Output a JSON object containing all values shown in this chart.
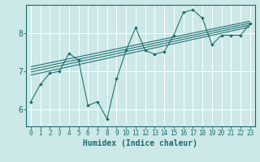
{
  "title": "",
  "xlabel": "Humidex (Indice chaleur)",
  "ylabel": "",
  "bg_color": "#cce8e8",
  "grid_color": "#ffffff",
  "line_color": "#1a6b6b",
  "xlim": [
    -0.5,
    23.5
  ],
  "ylim": [
    5.55,
    8.75
  ],
  "yticks": [
    6,
    7,
    8
  ],
  "xticks": [
    0,
    1,
    2,
    3,
    4,
    5,
    6,
    7,
    8,
    9,
    10,
    11,
    12,
    13,
    14,
    15,
    16,
    17,
    18,
    19,
    20,
    21,
    22,
    23
  ],
  "scatter_x": [
    0,
    1,
    2,
    3,
    4,
    5,
    6,
    7,
    8,
    9,
    10,
    11,
    12,
    13,
    14,
    15,
    16,
    17,
    18,
    19,
    20,
    21,
    22,
    23
  ],
  "scatter_y": [
    6.2,
    6.65,
    6.95,
    7.0,
    7.47,
    7.3,
    6.1,
    6.2,
    5.75,
    6.8,
    7.55,
    8.15,
    7.55,
    7.45,
    7.52,
    7.95,
    8.55,
    8.62,
    8.4,
    7.7,
    7.95,
    7.95,
    7.95,
    8.25
  ],
  "reg_lines": [
    {
      "x": [
        0,
        23
      ],
      "y": [
        6.98,
        8.22
      ]
    },
    {
      "x": [
        0,
        23
      ],
      "y": [
        7.05,
        8.27
      ]
    },
    {
      "x": [
        0,
        23
      ],
      "y": [
        7.12,
        8.32
      ]
    },
    {
      "x": [
        0,
        23
      ],
      "y": [
        6.9,
        8.17
      ]
    }
  ],
  "figsize": [
    3.2,
    2.0
  ],
  "dpi": 100
}
